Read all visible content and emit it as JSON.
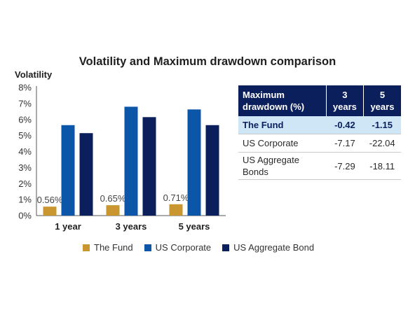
{
  "chart_data": [
    {
      "type": "bar",
      "title": "Volatility and Maximum drawdown comparison",
      "ylabel": "Volatility",
      "xlabel": "",
      "categories": [
        "1 year",
        "3 years",
        "5 years"
      ],
      "series": [
        {
          "name": "The Fund",
          "values": [
            0.56,
            0.65,
            0.71
          ],
          "color": "#c9962f",
          "data_labels": [
            "0.56%",
            "0.65%",
            "0.71%"
          ]
        },
        {
          "name": "US Corporate",
          "values": [
            5.65,
            6.8,
            6.63
          ],
          "color": "#0b56a8"
        },
        {
          "name": "US Aggregate Bond",
          "values": [
            5.15,
            6.15,
            5.65
          ],
          "color": "#0b1f5c"
        }
      ],
      "ylim": [
        0,
        8
      ],
      "yticks": [
        "0%",
        "1%",
        "2%",
        "3%",
        "4%",
        "5%",
        "6%",
        "7%",
        "8%"
      ],
      "grid": false,
      "legend": "bottom"
    },
    {
      "type": "table",
      "header": [
        "Maximum drawdown (%)",
        "3 years",
        "5 years"
      ],
      "rows": [
        {
          "label": "The Fund",
          "y3": "-0.42",
          "y5": "-1.15",
          "highlight": true
        },
        {
          "label": "US Corporate",
          "y3": "-7.17",
          "y5": "-22.04",
          "highlight": false
        },
        {
          "label": "US Aggregate Bonds",
          "y3": "-7.29",
          "y5": "-18.11",
          "highlight": false
        }
      ]
    }
  ]
}
